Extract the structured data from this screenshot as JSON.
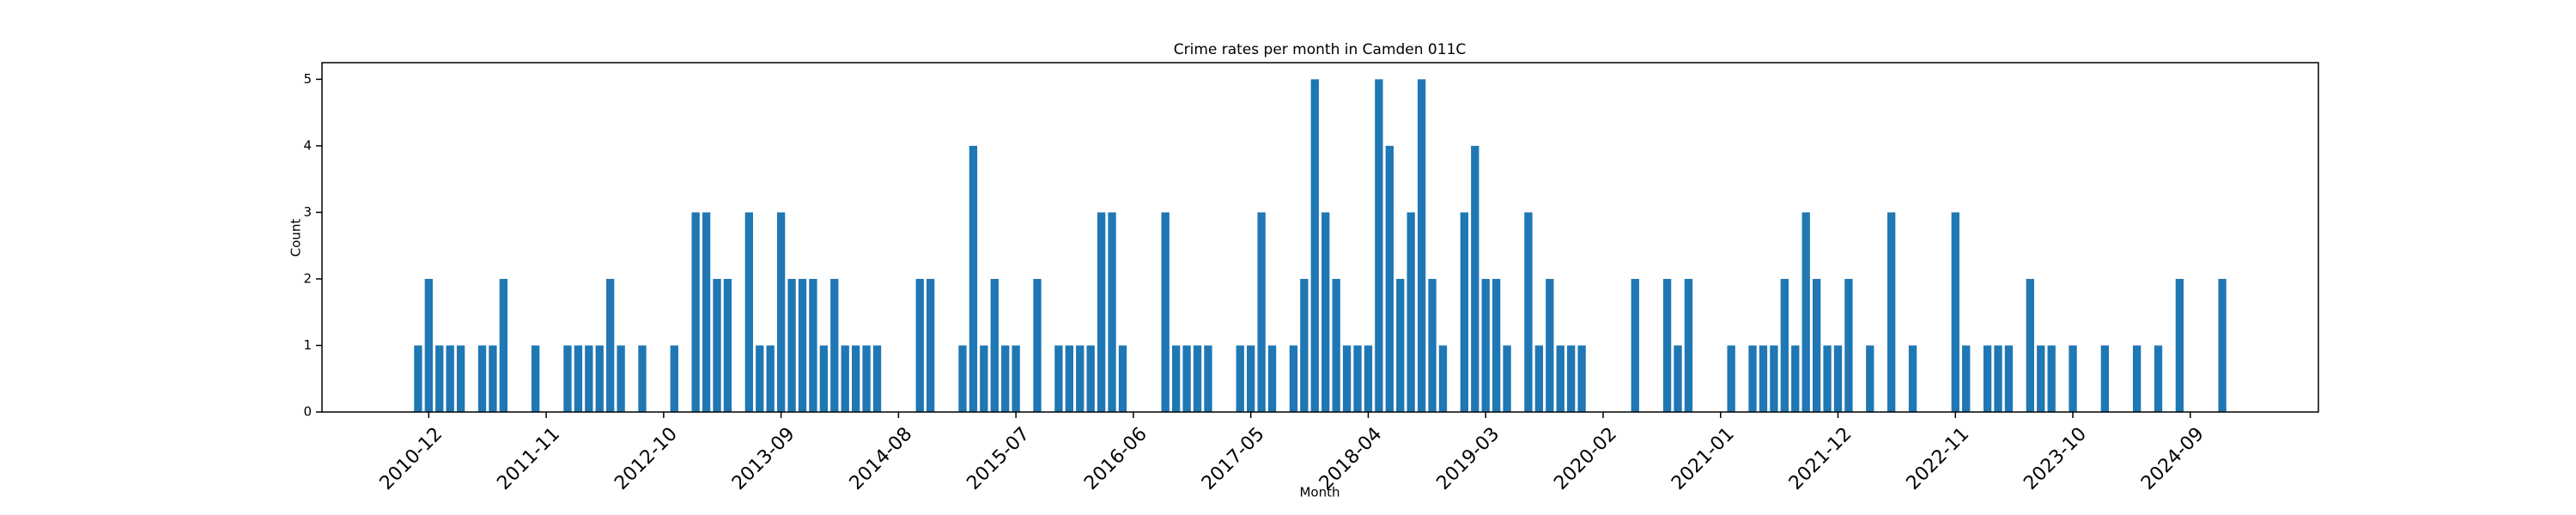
{
  "chart_data": {
    "type": "bar",
    "title": "Crime rates per month in Camden 011C",
    "x_label": "Month",
    "y_label": "Count",
    "color": "#1f77b4",
    "grid": false,
    "x": [
      "2010-11",
      "2010-12",
      "2011-01",
      "2011-02",
      "2011-03",
      "2011-05",
      "2011-06",
      "2011-07",
      "2011-10",
      "2012-01",
      "2012-02",
      "2012-03",
      "2012-04",
      "2012-05",
      "2012-06",
      "2012-08",
      "2012-11",
      "2013-01",
      "2013-02",
      "2013-03",
      "2013-04",
      "2013-06",
      "2013-07",
      "2013-08",
      "2013-09",
      "2013-10",
      "2013-11",
      "2013-12",
      "2014-01",
      "2014-02",
      "2014-03",
      "2014-04",
      "2014-05",
      "2014-06",
      "2014-10",
      "2014-11",
      "2015-02",
      "2015-03",
      "2015-04",
      "2015-05",
      "2015-06",
      "2015-07",
      "2015-09",
      "2015-11",
      "2015-12",
      "2016-01",
      "2016-02",
      "2016-03",
      "2016-04",
      "2016-05",
      "2016-09",
      "2016-10",
      "2016-11",
      "2016-12",
      "2017-01",
      "2017-04",
      "2017-05",
      "2017-06",
      "2017-07",
      "2017-09",
      "2017-10",
      "2017-11",
      "2017-12",
      "2018-01",
      "2018-02",
      "2018-03",
      "2018-04",
      "2018-05",
      "2018-06",
      "2018-07",
      "2018-08",
      "2018-09",
      "2018-10",
      "2018-11",
      "2019-01",
      "2019-02",
      "2019-03",
      "2019-04",
      "2019-05",
      "2019-07",
      "2019-08",
      "2019-09",
      "2019-10",
      "2019-11",
      "2019-12",
      "2020-05",
      "2020-08",
      "2020-09",
      "2020-10",
      "2021-02",
      "2021-04",
      "2021-05",
      "2021-06",
      "2021-07",
      "2021-08",
      "2021-09",
      "2021-10",
      "2021-11",
      "2021-12",
      "2022-01",
      "2022-03",
      "2022-05",
      "2022-07",
      "2022-11",
      "2022-12",
      "2023-02",
      "2023-03",
      "2023-04",
      "2023-06",
      "2023-07",
      "2023-08",
      "2023-10",
      "2024-01",
      "2024-04",
      "2024-06",
      "2024-08",
      "2024-12"
    ],
    "values": [
      1,
      2,
      1,
      1,
      1,
      1,
      1,
      2,
      1,
      1,
      1,
      1,
      1,
      2,
      1,
      1,
      1,
      3,
      3,
      2,
      2,
      3,
      1,
      1,
      3,
      2,
      2,
      2,
      1,
      2,
      1,
      1,
      1,
      1,
      2,
      2,
      1,
      4,
      1,
      2,
      1,
      1,
      2,
      1,
      1,
      1,
      1,
      3,
      3,
      1,
      3,
      1,
      1,
      1,
      1,
      1,
      1,
      3,
      1,
      1,
      2,
      5,
      3,
      2,
      1,
      1,
      1,
      5,
      4,
      2,
      3,
      5,
      2,
      1,
      3,
      4,
      2,
      2,
      1,
      3,
      1,
      2,
      1,
      1,
      1,
      2,
      2,
      1,
      2,
      1,
      1,
      1,
      1,
      2,
      1,
      3,
      2,
      1,
      1,
      2,
      1,
      3,
      1,
      3,
      1,
      1,
      1,
      1,
      2,
      1,
      1,
      1,
      1,
      1,
      1,
      2,
      2
    ],
    "xlim": [
      "2010-02",
      "2025-09"
    ],
    "xticks": [
      "2010-12",
      "2011-11",
      "2012-10",
      "2013-09",
      "2014-08",
      "2015-07",
      "2016-06",
      "2017-05",
      "2018-04",
      "2019-03",
      "2020-02",
      "2021-01",
      "2021-12",
      "2022-11",
      "2023-10",
      "2024-09"
    ],
    "ylim": [
      0,
      5.25
    ],
    "yticks": [
      0,
      1,
      2,
      3,
      4,
      5
    ]
  }
}
